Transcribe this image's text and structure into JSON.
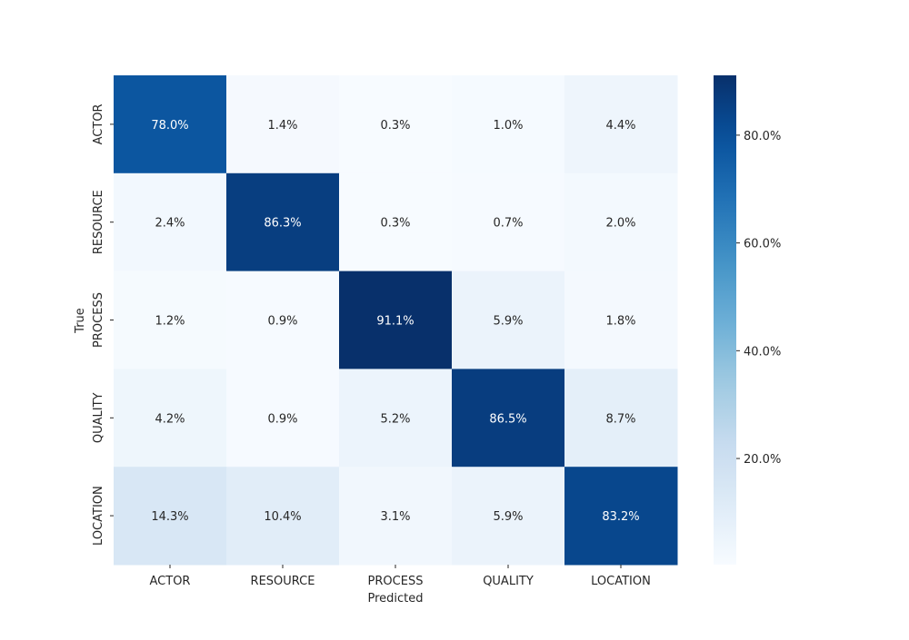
{
  "chart_data": {
    "type": "heatmap",
    "title": "",
    "xlabel": "Predicted",
    "ylabel": "True",
    "x_categories": [
      "ACTOR",
      "RESOURCE",
      "PROCESS",
      "QUALITY",
      "LOCATION"
    ],
    "y_categories": [
      "ACTOR",
      "RESOURCE",
      "PROCESS",
      "QUALITY",
      "LOCATION"
    ],
    "values": [
      [
        78.0,
        1.4,
        0.3,
        1.0,
        4.4
      ],
      [
        2.4,
        86.3,
        0.3,
        0.7,
        2.0
      ],
      [
        1.2,
        0.9,
        91.1,
        5.9,
        1.8
      ],
      [
        4.2,
        0.9,
        5.2,
        86.5,
        8.7
      ],
      [
        14.3,
        10.4,
        3.1,
        5.9,
        83.2
      ]
    ],
    "value_labels": [
      [
        "78.0%",
        "1.4%",
        "0.3%",
        "1.0%",
        "4.4%"
      ],
      [
        "2.4%",
        "86.3%",
        "0.3%",
        "0.7%",
        "2.0%"
      ],
      [
        "1.2%",
        "0.9%",
        "91.1%",
        "5.9%",
        "1.8%"
      ],
      [
        "4.2%",
        "0.9%",
        "5.2%",
        "86.5%",
        "8.7%"
      ],
      [
        "14.3%",
        "10.4%",
        "3.1%",
        "5.9%",
        "83.2%"
      ]
    ],
    "colorbar": {
      "range": [
        0.3,
        91.1
      ],
      "ticks": [
        20,
        40,
        60,
        80
      ],
      "tick_labels": [
        "20.0%",
        "40.0%",
        "60.0%",
        "80.0%"
      ],
      "colormap": "Blues"
    },
    "grid": false
  }
}
